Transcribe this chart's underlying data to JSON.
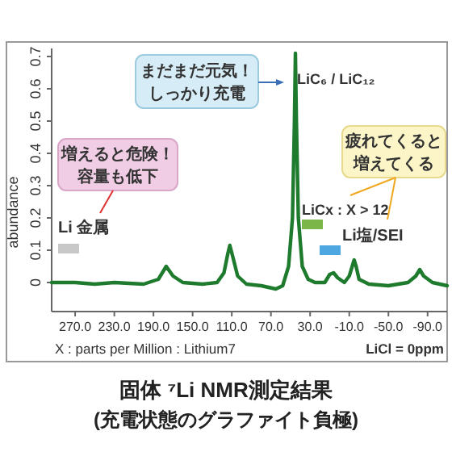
{
  "chart_data": {
    "type": "line",
    "title": "固体 ⁷Li NMR測定結果",
    "subtitle": "(充電状態のグラファイト負極)",
    "xlabel": "X : parts per Million : Lithium7",
    "ylabel": "abundance",
    "annotations": [
      "まだまだ元気！しっかり充電",
      "LiC₆ / LiC₁₂",
      "増えると危険！容量も低下",
      "Li 金属",
      "疲れてくると増えてくる",
      "LiCx : X > 12",
      "Li塩/SEI",
      "LiCl = 0ppm"
    ],
    "xlim": [
      294,
      -110
    ],
    "ylim": [
      -0.09,
      0.725
    ],
    "xticks": [
      {
        "value": 270,
        "label": "270.0"
      },
      {
        "value": 230,
        "label": "230.0"
      },
      {
        "value": 190,
        "label": "190.0"
      },
      {
        "value": 150,
        "label": "150.0"
      },
      {
        "value": 110,
        "label": "110.0"
      },
      {
        "value": 70,
        "label": "70.0"
      },
      {
        "value": 30,
        "label": "30.0"
      },
      {
        "value": -10,
        "label": "-10.0"
      },
      {
        "value": -50,
        "label": "-50.0"
      },
      {
        "value": -90,
        "label": "-90.0"
      }
    ],
    "yticks": [
      0,
      0.1,
      0.2,
      0.3,
      0.4,
      0.5,
      0.6,
      0.7
    ],
    "x": [
      294,
      270,
      250,
      230,
      200,
      185,
      177,
      170,
      160,
      140,
      125,
      118,
      114,
      112,
      109,
      104,
      95,
      80,
      65,
      58,
      52,
      48,
      46,
      45,
      44,
      42,
      38,
      32,
      25,
      15,
      10,
      6,
      2,
      -5,
      -10,
      -13,
      -15,
      -17,
      -20,
      -30,
      -50,
      -70,
      -78,
      -82,
      -86,
      -95,
      -110
    ],
    "series": [
      {
        "color": "#1e7b2e",
        "values": [
          0.0,
          0.0,
          -0.005,
          0.0,
          -0.005,
          0.01,
          0.05,
          0.02,
          0.0,
          -0.005,
          0.0,
          0.03,
          0.09,
          0.115,
          0.08,
          0.02,
          -0.005,
          -0.01,
          -0.02,
          -0.01,
          0.05,
          0.2,
          0.5,
          0.71,
          0.5,
          0.2,
          0.05,
          0.01,
          0.0,
          0.0,
          0.025,
          0.03,
          0.015,
          0.0,
          0.02,
          0.05,
          0.07,
          0.05,
          0.01,
          -0.005,
          -0.01,
          0.0,
          0.02,
          0.04,
          0.02,
          0.0,
          -0.01
        ]
      }
    ]
  }
}
